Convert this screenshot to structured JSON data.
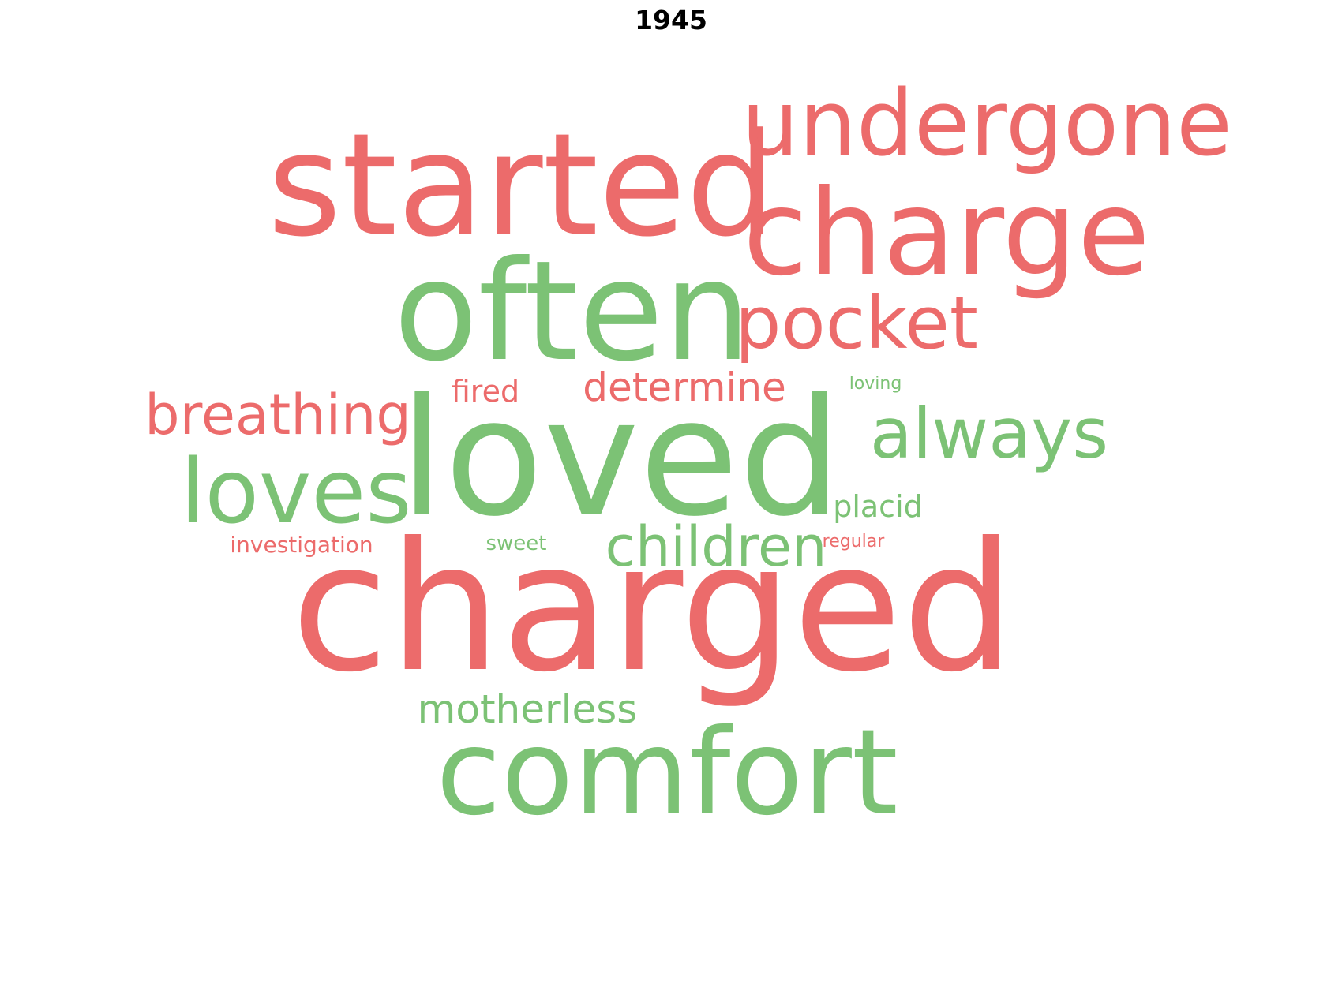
{
  "title": "1945",
  "chart_data": {
    "type": "wordcloud",
    "title": "1945",
    "colors": {
      "negative": "#ec6b6b",
      "positive": "#7cc275"
    },
    "words": [
      {
        "text": "charged",
        "weight": 1.0,
        "sentiment": "negative"
      },
      {
        "text": "loved",
        "weight": 0.98,
        "sentiment": "positive"
      },
      {
        "text": "started",
        "weight": 0.86,
        "sentiment": "negative"
      },
      {
        "text": "often",
        "weight": 0.85,
        "sentiment": "positive"
      },
      {
        "text": "charge",
        "weight": 0.72,
        "sentiment": "negative"
      },
      {
        "text": "comfort",
        "weight": 0.72,
        "sentiment": "positive"
      },
      {
        "text": "undergone",
        "weight": 0.6,
        "sentiment": "negative"
      },
      {
        "text": "loves",
        "weight": 0.56,
        "sentiment": "positive"
      },
      {
        "text": "pocket",
        "weight": 0.46,
        "sentiment": "negative"
      },
      {
        "text": "always",
        "weight": 0.45,
        "sentiment": "positive"
      },
      {
        "text": "breathing",
        "weight": 0.38,
        "sentiment": "negative"
      },
      {
        "text": "children",
        "weight": 0.37,
        "sentiment": "positive"
      },
      {
        "text": "determine",
        "weight": 0.28,
        "sentiment": "negative"
      },
      {
        "text": "motherless",
        "weight": 0.28,
        "sentiment": "positive"
      },
      {
        "text": "fired",
        "weight": 0.2,
        "sentiment": "negative"
      },
      {
        "text": "placid",
        "weight": 0.2,
        "sentiment": "positive"
      },
      {
        "text": "investigation",
        "weight": 0.15,
        "sentiment": "negative"
      },
      {
        "text": "sweet",
        "weight": 0.15,
        "sentiment": "positive"
      },
      {
        "text": "regular",
        "weight": 0.12,
        "sentiment": "negative"
      },
      {
        "text": "loving",
        "weight": 0.12,
        "sentiment": "positive"
      }
    ]
  }
}
